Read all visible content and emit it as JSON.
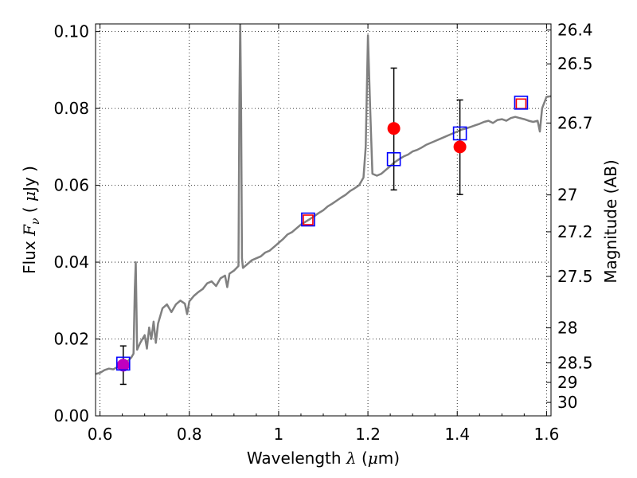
{
  "chart_data": {
    "type": "scatter",
    "title": "",
    "xlabel": {
      "prefix": "Wavelength ",
      "symbol": "λ",
      "unit_open": " (",
      "unit_mu": "μ",
      "unit_rest": "m)"
    },
    "ylabel": {
      "prefix": "Flux ",
      "symbol": "F",
      "subscript": "ν",
      "unit_open": " ( ",
      "unit_mu": "μ",
      "unit_rest": "Jy )"
    },
    "y2label": "Magnitude (AB)",
    "xlim": [
      0.59,
      1.61
    ],
    "ylim": [
      0.0,
      0.102
    ],
    "grid": true,
    "grid_style": "dotted",
    "x_ticks": [
      {
        "value": 0.6,
        "label": "0.6"
      },
      {
        "value": 0.8,
        "label": "0.8"
      },
      {
        "value": 1.0,
        "label": "1"
      },
      {
        "value": 1.2,
        "label": "1.2"
      },
      {
        "value": 1.4,
        "label": "1.4"
      },
      {
        "value": 1.6,
        "label": "1.6"
      }
    ],
    "y_ticks": [
      {
        "value": 0.0,
        "label": "0.00"
      },
      {
        "value": 0.02,
        "label": "0.02"
      },
      {
        "value": 0.04,
        "label": "0.04"
      },
      {
        "value": 0.06,
        "label": "0.06"
      },
      {
        "value": 0.08,
        "label": "0.08"
      },
      {
        "value": 0.1,
        "label": "0.10"
      }
    ],
    "y2_ticks": [
      {
        "flux": 0.1004,
        "label": "26.4"
      },
      {
        "flux": 0.0916,
        "label": "26.5"
      },
      {
        "flux": 0.0762,
        "label": "26.7"
      },
      {
        "flux": 0.0575,
        "label": "27"
      },
      {
        "flux": 0.0479,
        "label": "27.2"
      },
      {
        "flux": 0.0363,
        "label": "27.5"
      },
      {
        "flux": 0.0229,
        "label": "28"
      },
      {
        "flux": 0.0138,
        "label": "28.5"
      },
      {
        "flux": 0.0087,
        "label": "29"
      },
      {
        "flux": 0.0035,
        "label": "30"
      }
    ],
    "series": [
      {
        "style": "line",
        "color": "#808080",
        "points": [
          [
            0.59,
            0.0109
          ],
          [
            0.6,
            0.0112
          ],
          [
            0.61,
            0.0119
          ],
          [
            0.62,
            0.0123
          ],
          [
            0.63,
            0.0121
          ],
          [
            0.64,
            0.0128
          ],
          [
            0.65,
            0.0134
          ],
          [
            0.66,
            0.014
          ],
          [
            0.67,
            0.0152
          ],
          [
            0.675,
            0.0162
          ],
          [
            0.678,
            0.033
          ],
          [
            0.68,
            0.04
          ],
          [
            0.683,
            0.0172
          ],
          [
            0.69,
            0.019
          ],
          [
            0.7,
            0.021
          ],
          [
            0.705,
            0.0175
          ],
          [
            0.71,
            0.023
          ],
          [
            0.715,
            0.02
          ],
          [
            0.72,
            0.0245
          ],
          [
            0.725,
            0.019
          ],
          [
            0.73,
            0.024
          ],
          [
            0.74,
            0.028
          ],
          [
            0.75,
            0.029
          ],
          [
            0.76,
            0.027
          ],
          [
            0.77,
            0.029
          ],
          [
            0.78,
            0.03
          ],
          [
            0.79,
            0.0292
          ],
          [
            0.795,
            0.0265
          ],
          [
            0.8,
            0.0298
          ],
          [
            0.81,
            0.0312
          ],
          [
            0.82,
            0.0322
          ],
          [
            0.83,
            0.033
          ],
          [
            0.84,
            0.0345
          ],
          [
            0.85,
            0.035
          ],
          [
            0.86,
            0.0338
          ],
          [
            0.87,
            0.0358
          ],
          [
            0.88,
            0.0365
          ],
          [
            0.885,
            0.0335
          ],
          [
            0.89,
            0.037
          ],
          [
            0.9,
            0.0378
          ],
          [
            0.91,
            0.039
          ],
          [
            0.912,
            0.08
          ],
          [
            0.914,
            0.103
          ],
          [
            0.916,
            0.08
          ],
          [
            0.918,
            0.041
          ],
          [
            0.92,
            0.0385
          ],
          [
            0.93,
            0.0395
          ],
          [
            0.94,
            0.0405
          ],
          [
            0.95,
            0.041
          ],
          [
            0.96,
            0.0415
          ],
          [
            0.97,
            0.0425
          ],
          [
            0.98,
            0.043
          ],
          [
            0.99,
            0.044
          ],
          [
            1.0,
            0.045
          ],
          [
            1.01,
            0.046
          ],
          [
            1.02,
            0.0472
          ],
          [
            1.03,
            0.0478
          ],
          [
            1.04,
            0.0488
          ],
          [
            1.05,
            0.0498
          ],
          [
            1.06,
            0.0505
          ],
          [
            1.07,
            0.0512
          ],
          [
            1.08,
            0.052
          ],
          [
            1.09,
            0.0528
          ],
          [
            1.1,
            0.0535
          ],
          [
            1.11,
            0.0545
          ],
          [
            1.12,
            0.0552
          ],
          [
            1.13,
            0.056
          ],
          [
            1.14,
            0.0568
          ],
          [
            1.15,
            0.0575
          ],
          [
            1.16,
            0.0585
          ],
          [
            1.17,
            0.0592
          ],
          [
            1.18,
            0.06
          ],
          [
            1.19,
            0.062
          ],
          [
            1.195,
            0.07
          ],
          [
            1.2,
            0.099
          ],
          [
            1.205,
            0.08
          ],
          [
            1.21,
            0.063
          ],
          [
            1.22,
            0.0625
          ],
          [
            1.23,
            0.063
          ],
          [
            1.24,
            0.064
          ],
          [
            1.25,
            0.065
          ],
          [
            1.26,
            0.066
          ],
          [
            1.27,
            0.0668
          ],
          [
            1.28,
            0.0675
          ],
          [
            1.29,
            0.068
          ],
          [
            1.3,
            0.0688
          ],
          [
            1.31,
            0.0692
          ],
          [
            1.32,
            0.0698
          ],
          [
            1.33,
            0.0705
          ],
          [
            1.34,
            0.071
          ],
          [
            1.35,
            0.0715
          ],
          [
            1.36,
            0.072
          ],
          [
            1.37,
            0.0725
          ],
          [
            1.38,
            0.073
          ],
          [
            1.39,
            0.0735
          ],
          [
            1.4,
            0.074
          ],
          [
            1.41,
            0.0745
          ],
          [
            1.42,
            0.0748
          ],
          [
            1.43,
            0.0752
          ],
          [
            1.44,
            0.0756
          ],
          [
            1.45,
            0.076
          ],
          [
            1.46,
            0.0765
          ],
          [
            1.47,
            0.0768
          ],
          [
            1.48,
            0.0762
          ],
          [
            1.49,
            0.077
          ],
          [
            1.5,
            0.0772
          ],
          [
            1.51,
            0.0768
          ],
          [
            1.52,
            0.0775
          ],
          [
            1.53,
            0.0778
          ],
          [
            1.54,
            0.0775
          ],
          [
            1.55,
            0.0772
          ],
          [
            1.56,
            0.0768
          ],
          [
            1.57,
            0.0765
          ],
          [
            1.58,
            0.0768
          ],
          [
            1.585,
            0.074
          ],
          [
            1.59,
            0.08
          ],
          [
            1.6,
            0.083
          ],
          [
            1.61,
            0.0832
          ]
        ]
      },
      {
        "style": "errorbar",
        "color": "#000000",
        "points": [
          {
            "x": 0.652,
            "low": 0.0082,
            "high": 0.0182
          },
          {
            "x": 1.258,
            "low": 0.0588,
            "high": 0.0905
          },
          {
            "x": 1.406,
            "low": 0.0576,
            "high": 0.0822
          }
        ]
      },
      {
        "style": "filled-circle",
        "points": [
          {
            "x": 0.652,
            "y": 0.0132,
            "color": "#bf00bf"
          },
          {
            "x": 1.258,
            "y": 0.0748,
            "color": "#ff0000"
          },
          {
            "x": 1.406,
            "y": 0.07,
            "color": "#ff0000"
          }
        ]
      },
      {
        "style": "open-square",
        "color": "#ff0000",
        "points": [
          [
            1.066,
            0.051
          ],
          [
            1.543,
            0.0812
          ]
        ]
      },
      {
        "style": "open-square",
        "color": "#0000ff",
        "points": [
          [
            0.652,
            0.0136
          ],
          [
            1.066,
            0.0511
          ],
          [
            1.258,
            0.0668
          ],
          [
            1.406,
            0.0735
          ],
          [
            1.543,
            0.0815
          ]
        ]
      }
    ]
  }
}
